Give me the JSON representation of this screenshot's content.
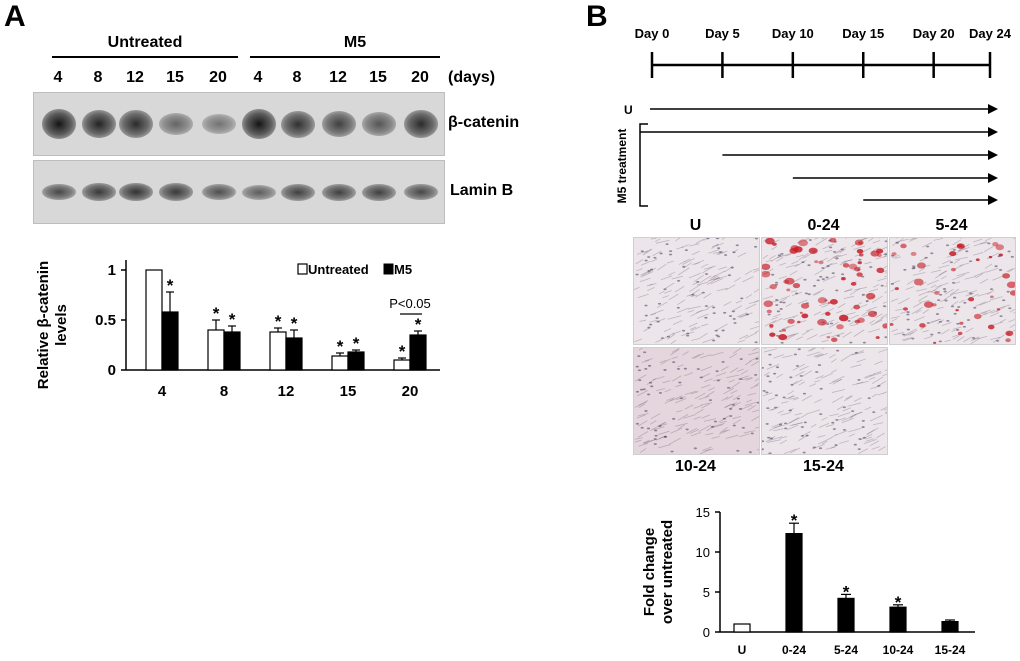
{
  "panelA": {
    "letter": "A",
    "groups": [
      "Untreated",
      "M5"
    ],
    "days": [
      "4",
      "8",
      "12",
      "15",
      "20"
    ],
    "days_unit": "(days)",
    "blot_labels": [
      "β-catenin",
      "Lamin B"
    ],
    "beta_catenin_band_intensity": [
      1.0,
      0.9,
      0.85,
      0.45,
      0.35,
      1.0,
      0.8,
      0.7,
      0.55,
      0.85
    ],
    "laminB_band_intensity": [
      0.65,
      0.75,
      0.8,
      0.75,
      0.6,
      0.5,
      0.7,
      0.7,
      0.7,
      0.65
    ]
  },
  "chartA": {
    "type": "bar",
    "ylabel_line1": "Relative β-catenin",
    "ylabel_line2": "levels",
    "categories": [
      "4",
      "8",
      "12",
      "15",
      "20"
    ],
    "series": [
      {
        "name": "Untreated",
        "color": "#ffffff",
        "values": [
          1.0,
          0.4,
          0.38,
          0.14,
          0.1
        ],
        "errors": [
          0.0,
          0.1,
          0.04,
          0.03,
          0.02
        ],
        "stars": [
          false,
          true,
          true,
          true,
          true
        ]
      },
      {
        "name": "M5",
        "color": "#000000",
        "values": [
          0.58,
          0.38,
          0.32,
          0.18,
          0.35
        ],
        "errors": [
          0.2,
          0.06,
          0.08,
          0.02,
          0.04
        ],
        "stars": [
          true,
          true,
          true,
          true,
          true
        ]
      }
    ],
    "yticks": [
      "0",
      "0.5",
      "1"
    ],
    "ylim": [
      0,
      1.1
    ],
    "legend_position": "top-right",
    "star": "*",
    "significance": {
      "label": "P<0.05",
      "category": "20"
    }
  },
  "panelB": {
    "letter": "B",
    "timeline_days": [
      "Day 0",
      "Day 5",
      "Day 10",
      "Day 15",
      "Day 20",
      "Day 24"
    ],
    "timeline_values": [
      0,
      5,
      10,
      15,
      20,
      24
    ],
    "untreated_label": "U",
    "treatment_label": "M5 treatment",
    "treatment_starts": [
      0,
      5,
      10,
      15
    ],
    "micrograph_labels": [
      "U",
      "0-24",
      "5-24",
      "10-24",
      "15-24"
    ],
    "stain_density": [
      0,
      60,
      35,
      0,
      0
    ]
  },
  "chartB": {
    "type": "bar",
    "ylabel_line1": "Fold change",
    "ylabel_line2": "over untreated",
    "categories": [
      "U",
      "0-24",
      "5-24",
      "10-24",
      "15-24"
    ],
    "values": [
      1.0,
      12.3,
      4.2,
      3.1,
      1.3
    ],
    "errors": [
      0.0,
      1.3,
      0.5,
      0.3,
      0.2
    ],
    "colors": [
      "#ffffff",
      "#000000",
      "#000000",
      "#000000",
      "#000000"
    ],
    "stars": [
      false,
      true,
      true,
      true,
      false
    ],
    "yticks": [
      "0",
      "5",
      "10",
      "15"
    ],
    "ylim": [
      0,
      15
    ],
    "star": "*"
  }
}
